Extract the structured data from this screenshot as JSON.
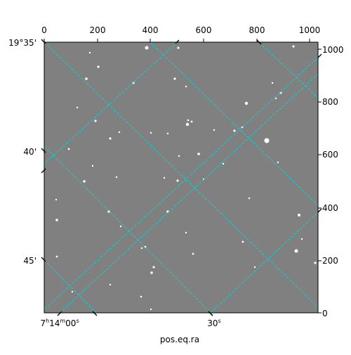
{
  "chart_data": {
    "type": "image",
    "xlabel": "pos.eq.ra",
    "pixel_axes": {
      "x_range": [
        0,
        1024
      ],
      "y_range": [
        0,
        1024
      ],
      "x_ticks": [
        0,
        200,
        400,
        600,
        800,
        1000
      ],
      "y_ticks": [
        0,
        200,
        400,
        600,
        800,
        1000
      ]
    },
    "world_ticks": {
      "dec_labels": [
        "19°35'",
        "40'",
        "45'"
      ],
      "ra_labels": [
        "7h14m00s",
        "30s"
      ]
    },
    "grid": true,
    "image_colormap": "gray",
    "colors": {
      "background": "#808080",
      "grid": "#00d6d6",
      "stars": "#ffffff"
    }
  }
}
